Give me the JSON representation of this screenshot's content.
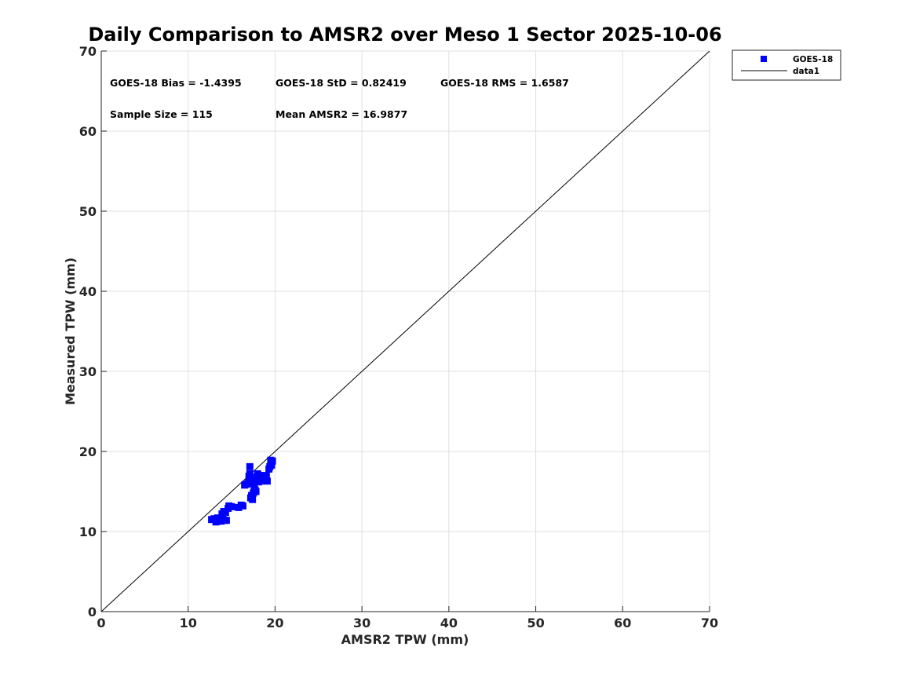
{
  "chart_data": {
    "type": "scatter",
    "title": "Daily Comparison to AMSR2 over Meso 1 Sector 2025-10-06",
    "xlabel": "AMSR2 TPW (mm)",
    "ylabel": "Measured TPW (mm)",
    "xlim": [
      0,
      70
    ],
    "ylim": [
      0,
      70
    ],
    "xticks": [
      0,
      10,
      20,
      30,
      40,
      50,
      60,
      70
    ],
    "yticks": [
      0,
      10,
      20,
      30,
      40,
      50,
      60,
      70
    ],
    "grid": true,
    "legend_position": "top-right outside",
    "annotations": [
      "GOES-18 Bias = -1.4395",
      "GOES-18 StD = 0.82419",
      "GOES-18 RMS = 1.6587",
      "Sample Size = 115",
      "Mean AMSR2 = 16.9877"
    ],
    "series": [
      {
        "name": "GOES-18",
        "type": "scatter",
        "marker": "square",
        "color": "#0000ff",
        "points": [
          [
            12.7,
            11.5
          ],
          [
            13.0,
            11.6
          ],
          [
            13.2,
            11.2
          ],
          [
            13.4,
            11.7
          ],
          [
            13.5,
            11.3
          ],
          [
            13.8,
            11.3
          ],
          [
            14.0,
            11.6
          ],
          [
            14.2,
            11.4
          ],
          [
            14.4,
            11.4
          ],
          [
            13.9,
            12.2
          ],
          [
            14.1,
            12.5
          ],
          [
            14.3,
            12.4
          ],
          [
            14.6,
            12.9
          ],
          [
            14.7,
            13.2
          ],
          [
            15.0,
            13.1
          ],
          [
            15.8,
            13.0
          ],
          [
            16.1,
            13.3
          ],
          [
            16.3,
            13.2
          ],
          [
            16.5,
            15.8
          ],
          [
            16.7,
            15.9
          ],
          [
            16.9,
            16.0
          ],
          [
            17.0,
            16.5
          ],
          [
            17.0,
            16.9
          ],
          [
            17.1,
            17.2
          ],
          [
            17.1,
            18.1
          ],
          [
            17.2,
            14.2
          ],
          [
            17.3,
            14.5
          ],
          [
            17.4,
            14.0
          ],
          [
            17.5,
            14.8
          ],
          [
            17.6,
            15.4
          ],
          [
            17.6,
            16.2
          ],
          [
            17.7,
            15.2
          ],
          [
            17.8,
            15.0
          ],
          [
            17.8,
            16.4
          ],
          [
            17.9,
            16.8
          ],
          [
            18.0,
            17.2
          ],
          [
            18.1,
            16.2
          ],
          [
            18.2,
            16.6
          ],
          [
            18.3,
            17.0
          ],
          [
            18.4,
            16.3
          ],
          [
            18.5,
            16.8
          ],
          [
            18.6,
            16.5
          ],
          [
            18.8,
            16.7
          ],
          [
            18.9,
            16.4
          ],
          [
            19.0,
            17.0
          ],
          [
            19.1,
            16.3
          ],
          [
            19.3,
            17.8
          ],
          [
            19.4,
            18.1
          ],
          [
            19.5,
            18.9
          ],
          [
            19.6,
            18.3
          ],
          [
            19.7,
            18.8
          ]
        ]
      },
      {
        "name": "data1",
        "type": "line",
        "color": "#000000",
        "x": [
          0,
          70
        ],
        "y": [
          0,
          70
        ]
      }
    ]
  }
}
